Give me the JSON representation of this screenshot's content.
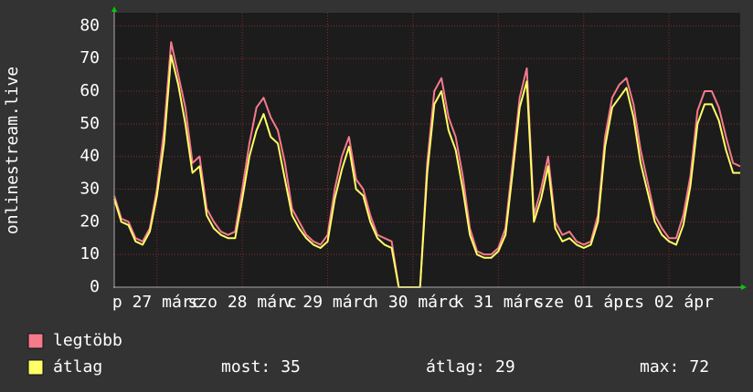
{
  "chart_data": {
    "type": "line",
    "y_label": "onlinestream.live",
    "ylim": [
      0,
      84
    ],
    "yticks": [
      0,
      10,
      20,
      30,
      40,
      50,
      60,
      70,
      80
    ],
    "xlim": [
      0,
      176
    ],
    "xticks": [
      {
        "value": 12,
        "label": "p 27 márc"
      },
      {
        "value": 36,
        "label": "szo 28 márc"
      },
      {
        "value": 60,
        "label": "v 29 márc"
      },
      {
        "value": 84,
        "label": "h 30 márc"
      },
      {
        "value": 108,
        "label": "k 31 márc"
      },
      {
        "value": 132,
        "label": "sze 01 ápr"
      },
      {
        "value": 156,
        "label": "cs 02 ápr"
      }
    ],
    "grid": true,
    "x": [
      0,
      2,
      4,
      6,
      8,
      10,
      12,
      14,
      16,
      18,
      20,
      22,
      24,
      26,
      28,
      30,
      32,
      34,
      36,
      38,
      40,
      42,
      44,
      46,
      48,
      50,
      52,
      54,
      56,
      58,
      60,
      62,
      64,
      66,
      68,
      70,
      72,
      74,
      76,
      78,
      80,
      82,
      84,
      86,
      88,
      90,
      92,
      94,
      96,
      98,
      100,
      102,
      104,
      106,
      108,
      110,
      112,
      114,
      116,
      118,
      120,
      122,
      124,
      126,
      128,
      130,
      132,
      134,
      136,
      138,
      140,
      142,
      144,
      146,
      148,
      150,
      152,
      154,
      156,
      158,
      160,
      162,
      164,
      166,
      168,
      170,
      172,
      174,
      176
    ],
    "series": [
      {
        "name": "legtöbb",
        "color": "#f57a8c",
        "values": [
          28,
          21,
          20,
          15,
          14,
          18,
          30,
          48,
          75,
          65,
          55,
          38,
          40,
          24,
          20,
          17,
          16,
          17,
          30,
          44,
          55,
          58,
          52,
          48,
          38,
          24,
          20,
          16,
          14,
          13,
          16,
          30,
          40,
          46,
          33,
          30,
          22,
          16,
          15,
          14,
          0,
          0,
          0,
          0,
          38,
          60,
          64,
          52,
          46,
          34,
          18,
          11,
          10,
          10,
          12,
          18,
          38,
          58,
          67,
          22,
          30,
          40,
          20,
          16,
          17,
          14,
          13,
          14,
          22,
          46,
          58,
          62,
          64,
          56,
          42,
          32,
          22,
          18,
          15,
          15,
          22,
          34,
          54,
          60,
          60,
          55,
          46,
          38,
          37
        ]
      },
      {
        "name": "átlag",
        "color": "#ffff66",
        "values": [
          27,
          20,
          19,
          14,
          13,
          17,
          28,
          44,
          71,
          62,
          50,
          35,
          37,
          22,
          18,
          16,
          15,
          15,
          27,
          40,
          48,
          53,
          46,
          44,
          33,
          22,
          18,
          15,
          13,
          12,
          14,
          27,
          36,
          43,
          30,
          28,
          20,
          15,
          13,
          12,
          0,
          0,
          0,
          0,
          35,
          56,
          60,
          48,
          42,
          30,
          16,
          10,
          9,
          9,
          11,
          16,
          35,
          55,
          63,
          20,
          27,
          37,
          18,
          14,
          15,
          13,
          12,
          13,
          20,
          43,
          55,
          58,
          61,
          52,
          38,
          29,
          20,
          16,
          14,
          13,
          19,
          31,
          50,
          56,
          56,
          51,
          42,
          35,
          35
        ]
      }
    ],
    "stats": [
      {
        "label": "most:",
        "value": 35
      },
      {
        "label": "átlag:",
        "value": 29
      },
      {
        "label": "max:",
        "value": 72
      }
    ]
  }
}
